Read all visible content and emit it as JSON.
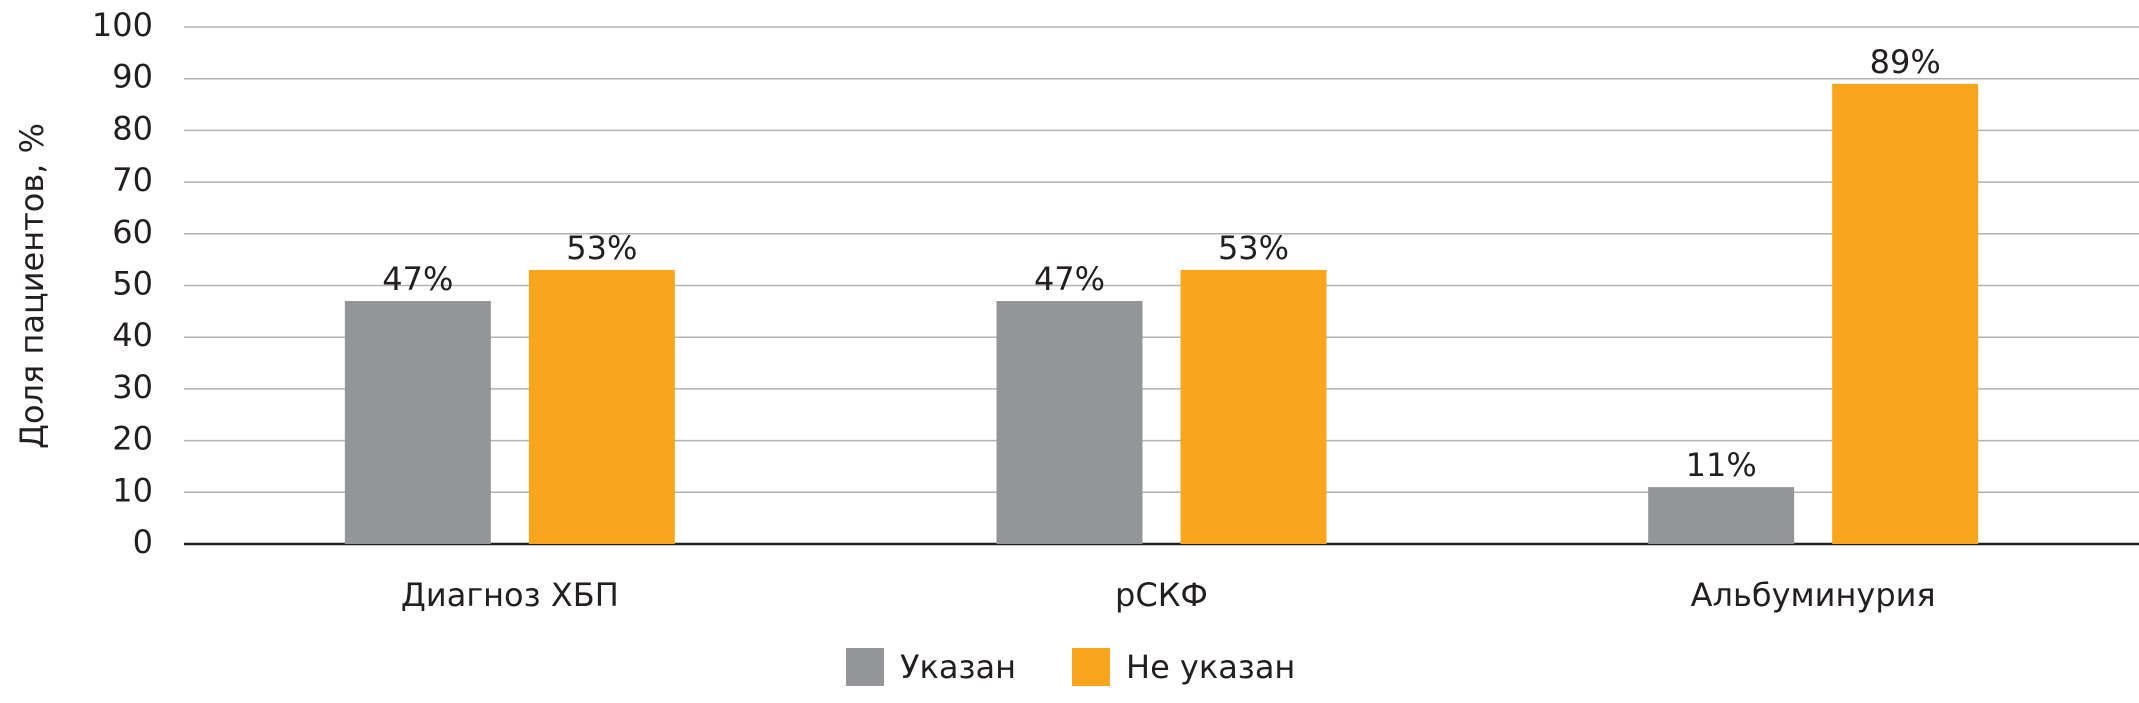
{
  "chart_data": {
    "type": "bar",
    "y_label": "Доля пациентов, %",
    "categories": [
      "Диагноз ХБП",
      "рСКФ",
      "Альбуминурия"
    ],
    "series": [
      {
        "name": "Указан",
        "color": "#939598",
        "values": [
          47,
          47,
          11
        ],
        "value_labels": [
          "47%",
          "47%",
          "11%"
        ]
      },
      {
        "name": "Не указан",
        "color": "#f9a51e",
        "values": [
          53,
          53,
          89
        ],
        "value_labels": [
          "53%",
          "53%",
          "89%"
        ]
      }
    ],
    "ylim": [
      0,
      100
    ],
    "yticks": [
      0,
      10,
      20,
      30,
      40,
      50,
      60,
      70,
      80,
      90,
      100
    ],
    "grid": true
  }
}
